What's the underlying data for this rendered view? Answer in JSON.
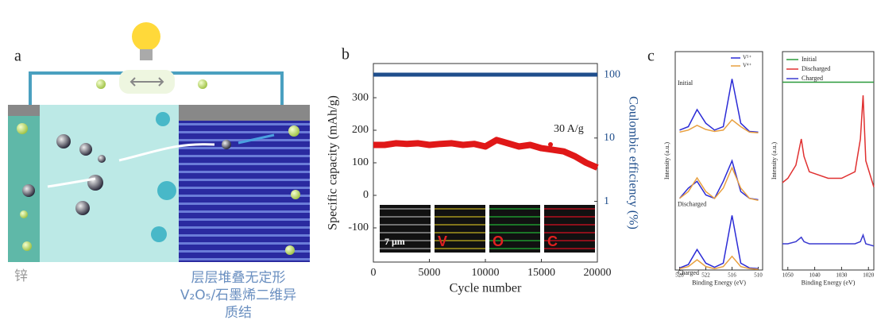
{
  "panel_labels": [
    "a",
    "b",
    "c"
  ],
  "diagram": {
    "anode_label": "锌",
    "cathode_label": [
      "层层堆叠无定形",
      "V₂O₅/石墨烯二维异",
      "质结"
    ]
  },
  "chart_data": [
    {
      "type": "scatter",
      "xlabel": "Cycle number",
      "ylabel": "Specific capacity (mAh/g)",
      "y2label": "Coulombic efficiency (%)",
      "x": [
        0,
        1000,
        2000,
        3000,
        4000,
        5000,
        6000,
        7000,
        8000,
        9000,
        10000,
        11000,
        12000,
        13000,
        14000,
        15000,
        16000,
        17000,
        18000,
        19000,
        20000
      ],
      "xlim": [
        0,
        20000
      ],
      "xticks": [
        0,
        5000,
        10000,
        15000,
        20000
      ],
      "ylim": [
        -205,
        405
      ],
      "yticks": [
        -100,
        0,
        100,
        200,
        300
      ],
      "y2lim": [
        0.11,
        150
      ],
      "y2ticks": [
        1,
        10,
        100
      ],
      "y2log": true,
      "series": [
        {
          "color": "#e01818",
          "values": [
            155,
            155,
            160,
            158,
            160,
            155,
            158,
            160,
            155,
            158,
            150,
            170,
            160,
            150,
            155,
            145,
            140,
            135,
            120,
            100,
            85
          ]
        },
        {
          "color": "#1f4e8c",
          "axis": "y2",
          "values": [
            100,
            100,
            100,
            100,
            100,
            100,
            100,
            100,
            100,
            100,
            100,
            100,
            100,
            100,
            100,
            100,
            100,
            100,
            100,
            100,
            100
          ]
        }
      ],
      "annotations": [
        "30 A/g"
      ],
      "insets": [
        "7 μm",
        "V",
        "O",
        "C"
      ]
    },
    {
      "type": "line",
      "xlabel": "Binding Energy (eV)",
      "ylabel": "Intensity (a.u.)",
      "x": [
        528,
        526,
        524,
        522,
        520,
        518,
        516,
        514,
        512,
        510
      ],
      "xlim": [
        529,
        509
      ],
      "xticks": [
        528,
        522,
        516,
        510
      ],
      "ylim": [
        0,
        3.2
      ],
      "legend": [
        {
          "name": "V⁵⁺",
          "color": "#2b2bd6"
        },
        {
          "name": "V⁴⁺",
          "color": "#e8a040"
        }
      ],
      "groups": [
        {
          "label": "Initial",
          "series": [
            {
              "values": [
                2.05,
                2.1,
                2.35,
                2.15,
                2.05,
                2.1,
                2.8,
                2.15,
                2.03,
                2.02
              ]
            },
            {
              "values": [
                2.02,
                2.05,
                2.12,
                2.06,
                2.03,
                2.05,
                2.2,
                2.1,
                2.02,
                2.01
              ]
            }
          ]
        },
        {
          "label": "Discharged",
          "series": [
            {
              "values": [
                1.05,
                1.2,
                1.3,
                1.1,
                1.05,
                1.3,
                1.6,
                1.15,
                1.05,
                1.03
              ]
            },
            {
              "values": [
                1.05,
                1.15,
                1.35,
                1.15,
                1.05,
                1.2,
                1.5,
                1.2,
                1.05,
                1.02
              ]
            }
          ]
        },
        {
          "label": "Charged",
          "series": [
            {
              "values": [
                0.03,
                0.08,
                0.3,
                0.1,
                0.04,
                0.1,
                0.8,
                0.1,
                0.03,
                0.02
              ]
            },
            {
              "values": [
                0.02,
                0.05,
                0.15,
                0.05,
                0.02,
                0.05,
                0.2,
                0.05,
                0.02,
                0.01
              ]
            }
          ]
        }
      ]
    },
    {
      "type": "line",
      "xlabel": "Binding Energy (eV)",
      "ylabel": "Intensity (a.u.)",
      "x": [
        1052,
        1050,
        1047,
        1045,
        1044,
        1042,
        1035,
        1030,
        1025,
        1023,
        1022,
        1021,
        1018
      ],
      "xlim": [
        1052,
        1018
      ],
      "xticks": [
        1050,
        1040,
        1030,
        1020
      ],
      "ylim": [
        0,
        1
      ],
      "series": [
        {
          "name": "Initial",
          "color": "#2a9a3a",
          "values": [
            0.86,
            0.86,
            0.86,
            0.86,
            0.86,
            0.86,
            0.86,
            0.86,
            0.86,
            0.86,
            0.86,
            0.86,
            0.86
          ]
        },
        {
          "name": "Discharged",
          "color": "#e03030",
          "values": [
            0.4,
            0.42,
            0.48,
            0.6,
            0.52,
            0.45,
            0.42,
            0.42,
            0.45,
            0.6,
            0.8,
            0.5,
            0.38
          ]
        },
        {
          "name": "Charged",
          "color": "#3a3ad0",
          "values": [
            0.12,
            0.12,
            0.13,
            0.15,
            0.13,
            0.12,
            0.12,
            0.12,
            0.12,
            0.13,
            0.16,
            0.12,
            0.11
          ]
        }
      ]
    }
  ]
}
